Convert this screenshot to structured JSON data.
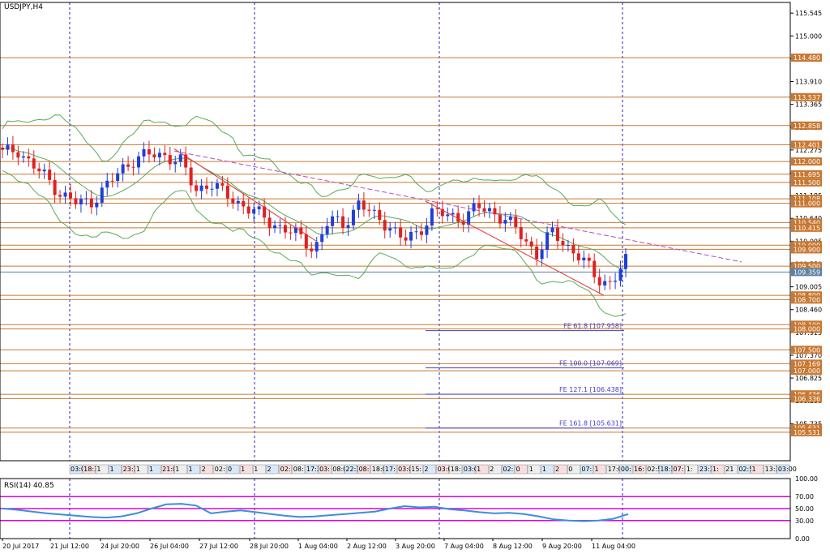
{
  "window_title": "USDJPY,H4",
  "indicator_title": "RSI(14) 40.85",
  "colors": {
    "bull": "#1f3fd8",
    "bear": "#e02020",
    "level": "#c87832",
    "label_bg": "#c87832",
    "bands": "#5aaa5a",
    "fib": "#4040c8",
    "trend_purple": "#b050c0",
    "trend_red": "#e03030",
    "rsi_line": "#3a8ee0",
    "rsi_level": "#e000e0",
    "grid_vline": "#2020c0",
    "axis": "#2020c0",
    "current_price": "#6080a0"
  },
  "chart_data": {
    "type": "candlestick",
    "symbol": "USDJPY",
    "timeframe": "H4",
    "ylim": [
      104.85,
      115.8
    ],
    "price_ticks": [
      "115.545",
      "115.000",
      "114.455",
      "113.910",
      "113.365",
      "112.820",
      "112.275",
      "111.730",
      "111.185",
      "110.640",
      "110.095",
      "109.550",
      "109.005",
      "108.460",
      "107.915",
      "107.370",
      "106.825",
      "106.280",
      "105.735"
    ],
    "levels": [
      "114.480",
      "113.537",
      "112.858",
      "112.401",
      "112.000",
      "111.695",
      "111.500",
      "111.108",
      "111.000",
      "110.540",
      "110.415",
      "110.000",
      "109.900",
      "109.500",
      "109.359",
      "108.800",
      "108.700",
      "108.100",
      "108.000",
      "107.500",
      "107.169",
      "107.000",
      "106.436",
      "106.336",
      "105.631",
      "105.531"
    ],
    "current_price": "109.359",
    "fibonacci": [
      {
        "label": "FE 61.8 [107.958]",
        "value": 107.958
      },
      {
        "label": "FE 100.0 [107.069]",
        "value": 107.069
      },
      {
        "label": "FE 127.1 [106.438]",
        "value": 106.438
      },
      {
        "label": "FE 161.8 [105.631]",
        "value": 105.631
      }
    ],
    "date_labels": [
      "20 Jul 2017",
      "21 Jul 12:00",
      "24 Jul 20:00",
      "26 Jul 04:00",
      "27 Jul 12:00",
      "28 Jul 20:00",
      "1 Aug 04:00",
      "2 Aug 12:00",
      "3 Aug 20:00",
      "7 Aug 04:00",
      "8 Aug 12:00",
      "9 Aug 20:00",
      "11 Aug 04:00"
    ],
    "close_path": [
      112.2,
      112.3,
      111.9,
      111.6,
      111.2,
      111.0,
      111.05,
      111.4,
      111.8,
      112.1,
      112.15,
      112.15,
      112.0,
      111.3,
      111.5,
      111.2,
      111.0,
      110.8,
      110.55,
      110.4,
      110.2,
      109.9,
      110.6,
      110.5,
      111.0,
      110.7,
      110.5,
      110.1,
      110.3,
      110.8,
      110.7,
      110.65,
      110.9,
      110.8,
      110.6,
      110.2,
      109.8,
      110.3,
      110.0,
      109.7,
      109.2,
      109.1,
      109.6
    ],
    "rsi": {
      "ylim": [
        0,
        100
      ],
      "ticks": [
        "100.00",
        "70.00",
        "50.00",
        "30.00",
        "0.00"
      ],
      "levels": [
        70,
        50,
        30
      ],
      "values": [
        50,
        48,
        45,
        42,
        40,
        38,
        36,
        35,
        37,
        42,
        50,
        57,
        58,
        55,
        42,
        45,
        47,
        44,
        41,
        38,
        36,
        37,
        39,
        41,
        43,
        45,
        50,
        54,
        52,
        53,
        49,
        47,
        44,
        42,
        43,
        41,
        37,
        32,
        30,
        29,
        30,
        33,
        40.85
      ]
    },
    "session_labels": [
      "03:00",
      "18:30",
      "1",
      "1",
      "23:30",
      "1",
      "1",
      "21:00",
      "1",
      "1",
      "2",
      "02:",
      "0",
      "1",
      "1",
      "2",
      "02:",
      "08:",
      "17:30",
      "03:",
      "08:00",
      "22:30",
      "08:",
      "18:00",
      "17:",
      "03:00",
      "15:",
      "2",
      "03:00",
      "18:",
      "03:00",
      "1",
      "2",
      "02:",
      "0",
      "1",
      "1",
      "2",
      "0",
      "07:",
      "1",
      "17:00",
      "00:",
      "16:",
      "02:50",
      "18:30",
      "07:",
      "1:",
      "23:30",
      "1:",
      "21",
      "02:50",
      "1",
      "13:30",
      "03:00"
    ]
  }
}
